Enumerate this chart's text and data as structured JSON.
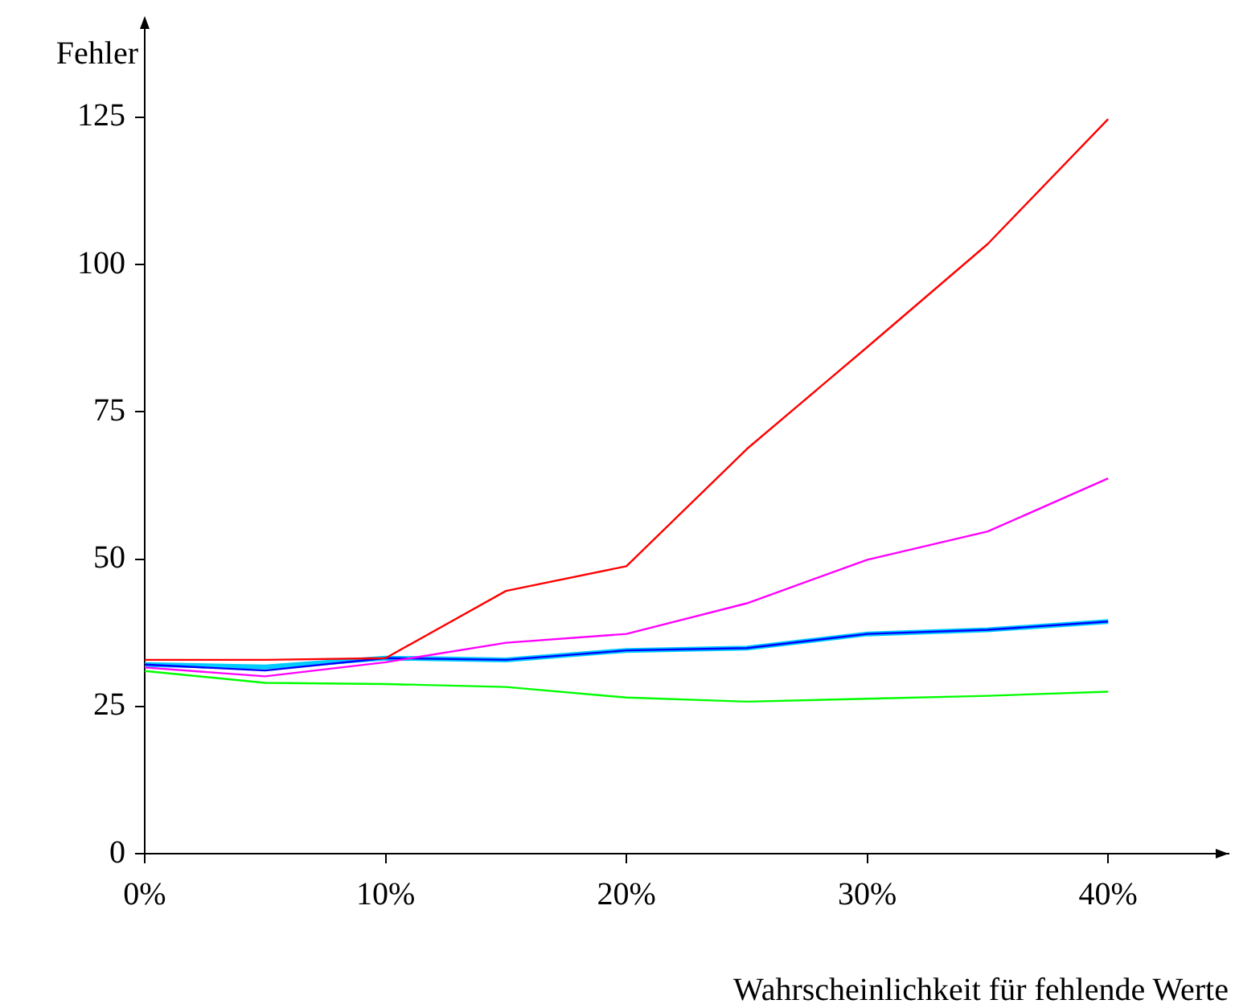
{
  "chart_data": {
    "type": "line",
    "xlabel": "Wahrscheinlichkeit für fehlende Werte",
    "ylabel": "Fehler",
    "x": [
      0,
      5,
      10,
      15,
      20,
      25,
      30,
      35,
      40
    ],
    "series": [
      {
        "color": "#ff0000",
        "values": [
          32.9,
          32.9,
          33.2,
          44.6,
          48.8,
          68.7,
          86,
          103.5,
          124.7
        ]
      },
      {
        "color": "#ff00ff",
        "values": [
          31.6,
          30.1,
          32.5,
          35.8,
          37.3,
          42.5,
          49.9,
          54.7,
          63.7
        ]
      },
      {
        "color": "#0000ff",
        "values": [
          32.1,
          31.1,
          33.2,
          32.9,
          34.5,
          34.9,
          37.3,
          38.0,
          39.4
        ]
      },
      {
        "color": "#00ccff",
        "values": [
          32.1,
          31.7,
          33.2,
          32.9,
          34.5,
          34.9,
          37.3,
          38.0,
          39.4
        ]
      },
      {
        "color": "#00ff00",
        "values": [
          31.0,
          29.0,
          28.8,
          28.3,
          26.5,
          25.8,
          26.3,
          26.8,
          27.5
        ]
      }
    ],
    "xlim": [
      0,
      45
    ],
    "ylim": [
      0,
      140
    ],
    "xticks": [
      {
        "value": 0,
        "label": "0%"
      },
      {
        "value": 10,
        "label": "10%"
      },
      {
        "value": 20,
        "label": "20%"
      },
      {
        "value": 30,
        "label": "30%"
      },
      {
        "value": 40,
        "label": "40%"
      }
    ],
    "yticks": [
      0,
      25,
      50,
      75,
      100,
      125
    ],
    "grid": false,
    "legend": false,
    "marker": "none",
    "line_style": "solid"
  }
}
